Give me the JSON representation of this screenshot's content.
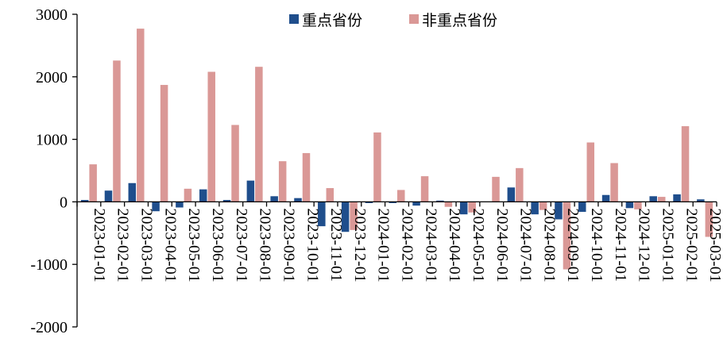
{
  "chart_data": {
    "type": "bar",
    "title": "",
    "xlabel": "",
    "ylabel": "",
    "ylim": [
      -2000,
      3000
    ],
    "yticks": [
      3000,
      2000,
      1000,
      0,
      -1000,
      -2000
    ],
    "grid": false,
    "legend": "top-center",
    "categories": [
      "2023-01-01",
      "2023-02-01",
      "2023-03-01",
      "2023-04-01",
      "2023-05-01",
      "2023-06-01",
      "2023-07-01",
      "2023-08-01",
      "2023-09-01",
      "2023-10-01",
      "2023-11-01",
      "2023-12-01",
      "2024-01-01",
      "2024-02-01",
      "2024-03-01",
      "2024-04-01",
      "2024-05-01",
      "2024-06-01",
      "2024-07-01",
      "2024-08-01",
      "2024-09-01",
      "2024-10-01",
      "2024-11-01",
      "2024-12-01",
      "2025-01-01",
      "2025-02-01",
      "2025-03-01"
    ],
    "series": [
      {
        "name": "重点省份",
        "color": "#1F4E8C",
        "values": [
          30,
          180,
          300,
          -150,
          -90,
          200,
          30,
          340,
          90,
          60,
          -390,
          -480,
          -20,
          -20,
          -60,
          20,
          -200,
          0,
          230,
          -200,
          -280,
          -160,
          110,
          -100,
          90,
          120,
          40
        ]
      },
      {
        "name": "非重点省份",
        "color": "#DA9896",
        "values": [
          600,
          2260,
          2770,
          1870,
          210,
          2080,
          1230,
          2160,
          650,
          780,
          220,
          -450,
          1110,
          190,
          410,
          -80,
          -170,
          400,
          540,
          -130,
          -1080,
          950,
          620,
          -120,
          80,
          1210,
          -560
        ]
      }
    ]
  }
}
